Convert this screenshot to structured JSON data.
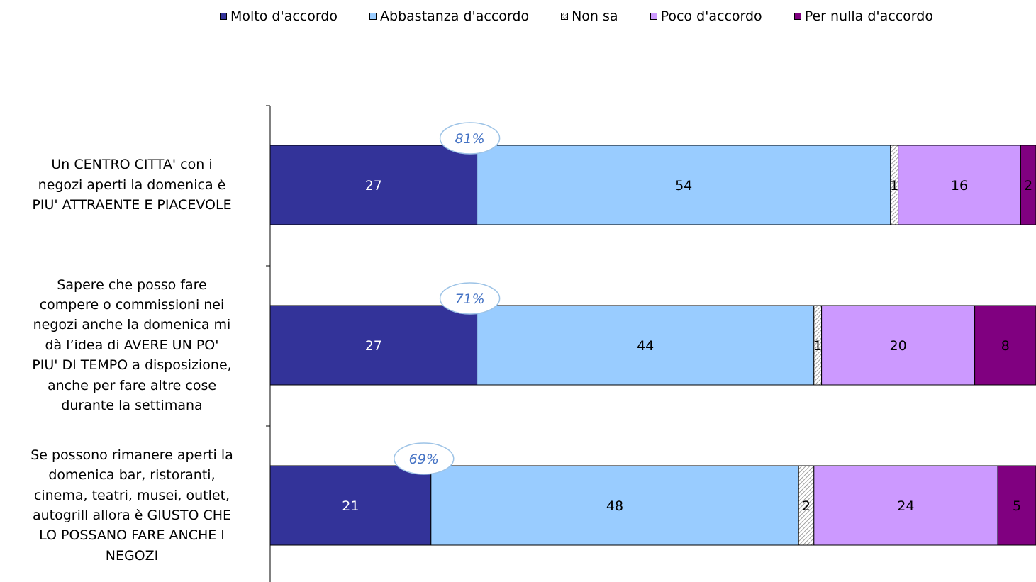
{
  "chart_data": {
    "type": "bar",
    "orientation": "horizontal",
    "stacked": true,
    "categories": [
      "Un CENTRO CITTA' con i negozi aperti la domenica è PIU' ATTRAENTE E PIACEVOLE",
      "Sapere che posso fare compere o commissioni nei negozi anche la domenica mi dà l’idea di AVERE UN PO' PIU' DI TEMPO a disposizione, anche per fare altre cose durante la settimana",
      "Se possono rimanere aperti la domenica bar, ristoranti, cinema, teatri, musei, outlet, autogrill allora è GIUSTO CHE LO POSSANO FARE ANCHE I NEGOZI"
    ],
    "category_lines": [
      [
        "Un CENTRO CITTA' con i",
        "negozi aperti la domenica è",
        "PIU' ATTRAENTE E PIACEVOLE"
      ],
      [
        "Sapere che posso fare",
        "compere o commissioni nei",
        "negozi anche la domenica mi",
        "dà l’idea di AVERE UN PO'",
        "PIU' DI TEMPO a disposizione,",
        "anche per fare altre cose",
        "durante la settimana"
      ],
      [
        "Se possono rimanere aperti la",
        "domenica bar, ristoranti,",
        "cinema, teatri, musei, outlet,",
        "autogrill allora è GIUSTO CHE",
        "LO POSSANO FARE ANCHE I",
        "NEGOZI"
      ]
    ],
    "series": [
      {
        "name": "Molto d'accordo",
        "color": "#333399",
        "values": [
          27,
          27,
          21
        ]
      },
      {
        "name": "Abbastanza d'accordo",
        "color": "#99CCFF",
        "values": [
          54,
          44,
          48
        ]
      },
      {
        "name": "Non sa",
        "color": "#DDDDDD",
        "pattern": "hatched",
        "values": [
          1,
          1,
          2
        ]
      },
      {
        "name": "Poco d'accordo",
        "color": "#CC99FF",
        "values": [
          16,
          20,
          24
        ]
      },
      {
        "name": "Per nulla d'accordo",
        "color": "#800080",
        "values": [
          2,
          8,
          5
        ]
      }
    ],
    "annotations": [
      "81%",
      "71%",
      "69%"
    ],
    "annotation_color": "#4472C4",
    "legend_position": "top",
    "grid": false
  }
}
